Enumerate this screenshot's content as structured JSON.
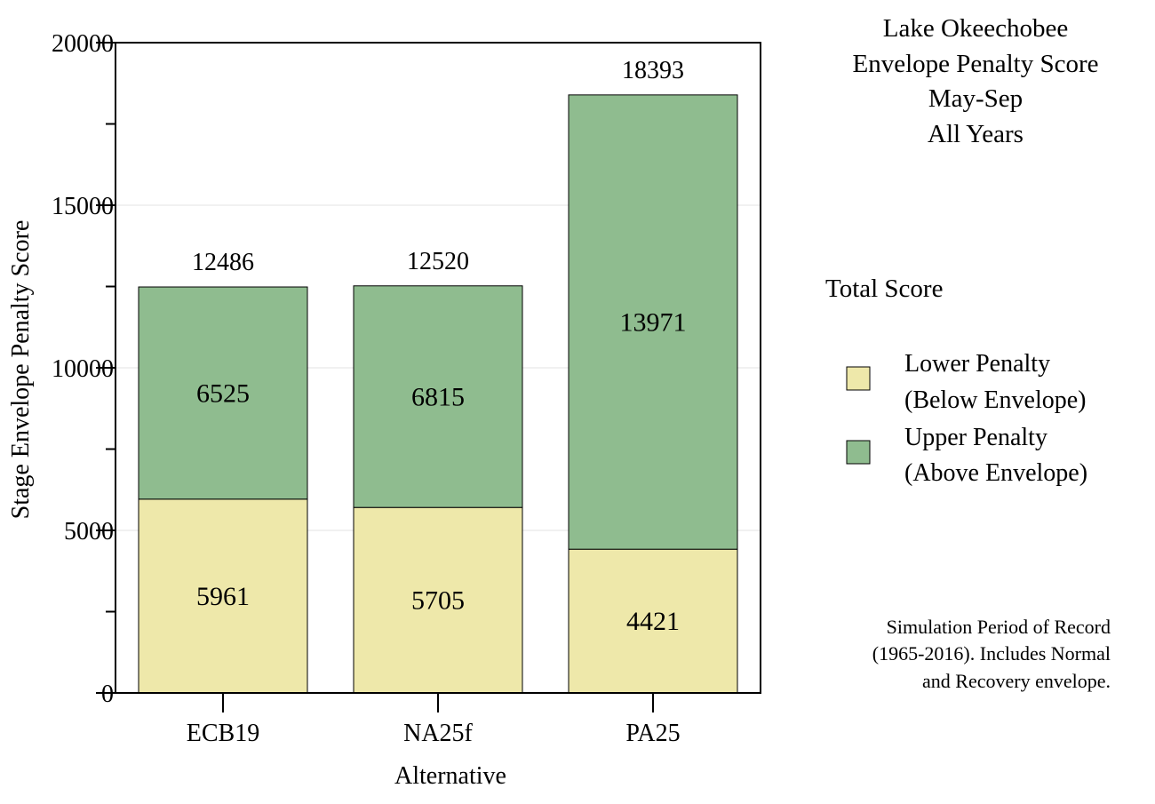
{
  "chart_data": {
    "type": "bar",
    "stacked": true,
    "categories": [
      "ECB19",
      "NA25f",
      "PA25"
    ],
    "series": [
      {
        "name": "Lower Penalty (Below Envelope)",
        "legend_lines": [
          "Lower Penalty",
          "(Below Envelope)"
        ],
        "values": [
          5961,
          5705,
          4421
        ],
        "color": "#EEE8AA"
      },
      {
        "name": "Upper Penalty (Above Envelope)",
        "legend_lines": [
          "Upper Penalty",
          "(Above Envelope)"
        ],
        "values": [
          6525,
          6815,
          13971
        ],
        "color": "#8FBC8F"
      }
    ],
    "totals": [
      12486,
      12520,
      18393
    ],
    "title_lines": [
      "Lake Okeechobee",
      "Envelope Penalty Score",
      "May-Sep",
      "All Years"
    ],
    "xlabel": "Alternative",
    "ylabel": "Stage Envelope Penalty Score",
    "ylim": [
      0,
      20000
    ],
    "yticks_major": [
      0,
      5000,
      10000,
      15000,
      20000
    ],
    "yticks_minor": [
      2500,
      7500,
      12500,
      17500
    ],
    "grid": true,
    "legend_title": "Total Score",
    "legend_position": "right",
    "note_lines": [
      "Simulation Period of Record",
      "(1965-2016). Includes Normal",
      "and Recovery envelope."
    ]
  }
}
